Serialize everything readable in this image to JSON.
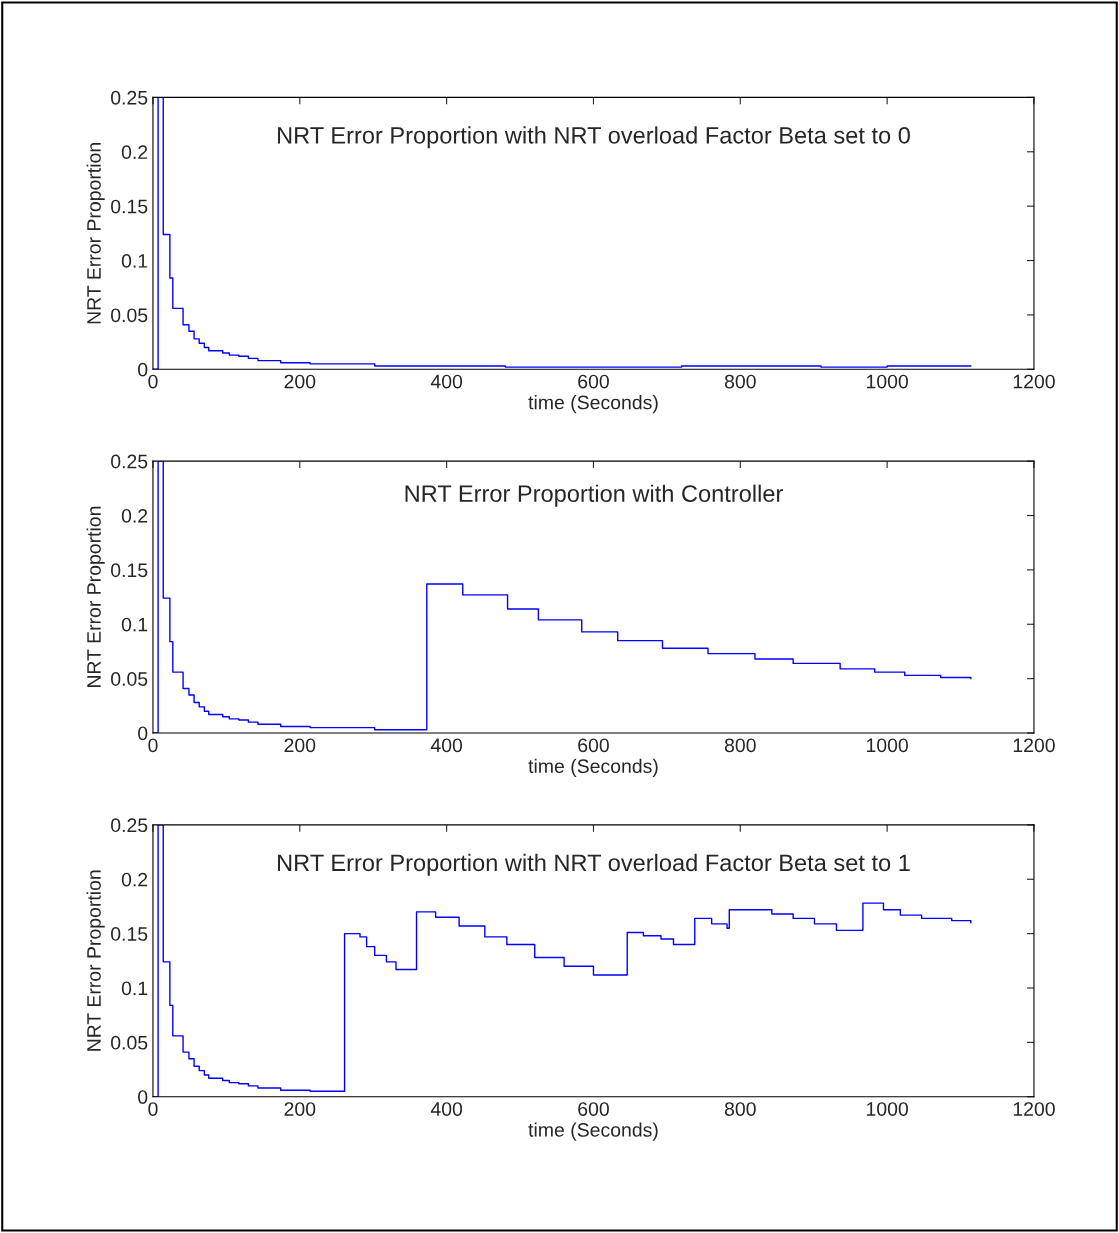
{
  "chart_data": [
    {
      "type": "step",
      "title": "NRT Error Proportion with NRT overload Factor Beta set to 0",
      "xlabel": "time (Seconds)",
      "ylabel": "NRT Error Proportion",
      "xlim": [
        0,
        1200
      ],
      "ylim": [
        0,
        0.25
      ],
      "xticks": [
        0,
        200,
        400,
        600,
        800,
        1000,
        1200
      ],
      "yticks": [
        0,
        0.05,
        0.1,
        0.15,
        0.2,
        0.25
      ],
      "grid": false,
      "series": [
        {
          "color": "#0000ff",
          "x": [
            0,
            7,
            14,
            23,
            27,
            41,
            49,
            56,
            63,
            70,
            76,
            95,
            104,
            117,
            130,
            143,
            174,
            214,
            302,
            480,
            720,
            910,
            1000,
            1114
          ],
          "values": [
            0,
            0.25,
            0.124,
            0.084,
            0.056,
            0.041,
            0.035,
            0.028,
            0.024,
            0.02,
            0.017,
            0.015,
            0.013,
            0.012,
            0.01,
            0.008,
            0.006,
            0.005,
            0.003,
            0.002,
            0.003,
            0.002,
            0.003,
            0.003
          ]
        }
      ]
    },
    {
      "type": "step",
      "title": "NRT Error Proportion with Controller",
      "xlabel": "time (Seconds)",
      "ylabel": "NRT Error Proportion",
      "xlim": [
        0,
        1200
      ],
      "ylim": [
        0,
        0.25
      ],
      "xticks": [
        0,
        200,
        400,
        600,
        800,
        1000,
        1200
      ],
      "yticks": [
        0,
        0.05,
        0.1,
        0.15,
        0.2,
        0.25
      ],
      "grid": false,
      "series": [
        {
          "color": "#0000ff",
          "x": [
            0,
            7,
            14,
            23,
            27,
            41,
            49,
            56,
            63,
            70,
            76,
            95,
            104,
            117,
            130,
            143,
            174,
            214,
            302,
            373,
            422,
            483,
            525,
            584,
            633,
            694,
            756,
            820,
            872,
            936,
            983,
            1024,
            1073,
            1114
          ],
          "values": [
            0,
            0.25,
            0.124,
            0.084,
            0.056,
            0.041,
            0.035,
            0.028,
            0.024,
            0.02,
            0.017,
            0.015,
            0.013,
            0.012,
            0.01,
            0.008,
            0.006,
            0.005,
            0.003,
            0.137,
            0.127,
            0.114,
            0.104,
            0.093,
            0.085,
            0.078,
            0.073,
            0.068,
            0.064,
            0.059,
            0.056,
            0.053,
            0.051,
            0.05
          ]
        }
      ]
    },
    {
      "type": "step",
      "title": "NRT Error Proportion with NRT overload Factor Beta set to 1",
      "xlabel": "time (Seconds)",
      "ylabel": "NRT Error Proportion",
      "xlim": [
        0,
        1200
      ],
      "ylim": [
        0,
        0.25
      ],
      "xticks": [
        0,
        200,
        400,
        600,
        800,
        1000,
        1200
      ],
      "yticks": [
        0,
        0.05,
        0.1,
        0.15,
        0.2,
        0.25
      ],
      "grid": false,
      "series": [
        {
          "color": "#0000ff",
          "x": [
            0,
            7,
            14,
            23,
            27,
            41,
            49,
            56,
            63,
            70,
            76,
            95,
            104,
            117,
            130,
            143,
            174,
            214,
            261,
            282,
            291,
            302,
            318,
            331,
            359,
            385,
            417,
            452,
            482,
            520,
            560,
            600,
            646,
            668,
            692,
            709,
            738,
            761,
            782,
            785,
            843,
            872,
            901,
            931,
            967,
            995,
            1018,
            1047,
            1088,
            1114
          ],
          "values": [
            0,
            0.25,
            0.124,
            0.084,
            0.056,
            0.041,
            0.035,
            0.028,
            0.024,
            0.02,
            0.017,
            0.015,
            0.013,
            0.012,
            0.01,
            0.008,
            0.006,
            0.005,
            0.15,
            0.147,
            0.138,
            0.13,
            0.124,
            0.117,
            0.17,
            0.165,
            0.157,
            0.147,
            0.14,
            0.128,
            0.12,
            0.112,
            0.151,
            0.148,
            0.145,
            0.14,
            0.164,
            0.159,
            0.155,
            0.172,
            0.168,
            0.164,
            0.159,
            0.153,
            0.178,
            0.172,
            0.167,
            0.164,
            0.162,
            0.16
          ]
        }
      ]
    }
  ]
}
